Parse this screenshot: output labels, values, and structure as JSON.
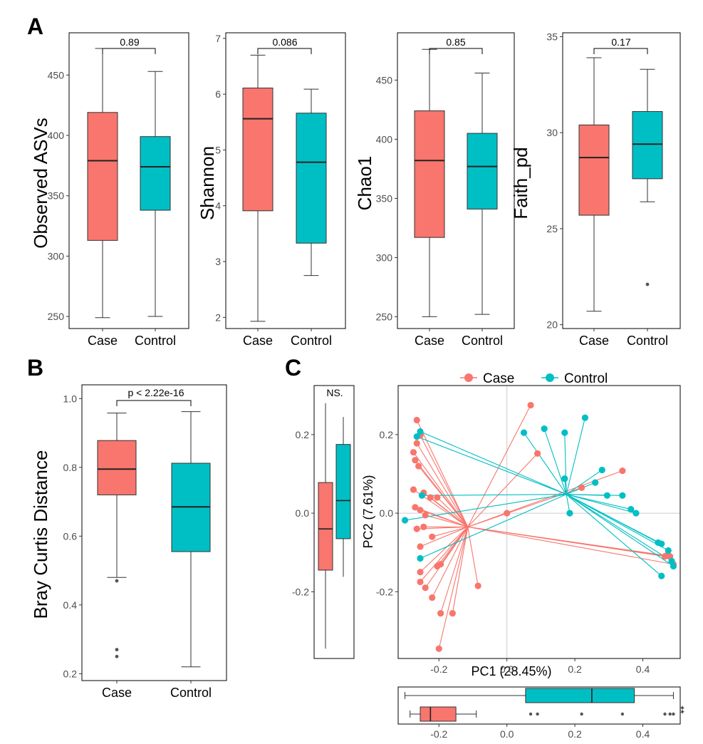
{
  "panel_labels": {
    "a": "A",
    "b": "B",
    "c": "C"
  },
  "colors": {
    "case": "#F8766D",
    "control": "#00BFC4",
    "outlier": "#555555",
    "grid": "#cccccc"
  },
  "chart_data": [
    {
      "type": "boxplot",
      "panel": "A",
      "ylabel": "Observed ASVs",
      "xlabel": "",
      "ylim": [
        240,
        485
      ],
      "yticks": [
        250,
        300,
        350,
        400,
        450
      ],
      "categories": [
        "Case",
        "Control"
      ],
      "boxes": [
        {
          "name": "Case",
          "whisker_low": 249,
          "q1": 313,
          "median": 379,
          "q3": 419,
          "whisker_high": 472,
          "outliers": []
        },
        {
          "name": "Control",
          "whisker_low": 250,
          "q1": 338,
          "median": 374,
          "q3": 399,
          "whisker_high": 453,
          "outliers": []
        }
      ],
      "comparison": {
        "label": "0.89"
      }
    },
    {
      "type": "boxplot",
      "panel": "A",
      "ylabel": "Shannon",
      "xlabel": "",
      "ylim": [
        1.8,
        7.1
      ],
      "yticks": [
        2,
        3,
        4,
        5,
        6,
        7
      ],
      "categories": [
        "Case",
        "Control"
      ],
      "boxes": [
        {
          "name": "Case",
          "whisker_low": 1.93,
          "q1": 3.91,
          "median": 5.56,
          "q3": 6.11,
          "whisker_high": 6.7,
          "outliers": []
        },
        {
          "name": "Control",
          "whisker_low": 2.75,
          "q1": 3.33,
          "median": 4.78,
          "q3": 5.66,
          "whisker_high": 6.09,
          "outliers": []
        }
      ],
      "comparison": {
        "label": "0.086"
      }
    },
    {
      "type": "boxplot",
      "panel": "A",
      "ylabel": "Chao1",
      "xlabel": "",
      "ylim": [
        240,
        490
      ],
      "yticks": [
        250,
        300,
        350,
        400,
        450
      ],
      "categories": [
        "Case",
        "Control"
      ],
      "boxes": [
        {
          "name": "Case",
          "whisker_low": 250,
          "q1": 317,
          "median": 382,
          "q3": 424,
          "whisker_high": 476,
          "outliers": []
        },
        {
          "name": "Control",
          "whisker_low": 252,
          "q1": 341,
          "median": 377,
          "q3": 405,
          "whisker_high": 456,
          "outliers": []
        }
      ],
      "comparison": {
        "label": "0.85"
      }
    },
    {
      "type": "boxplot",
      "panel": "A",
      "ylabel": "Faith_pd",
      "xlabel": "",
      "ylim": [
        19.8,
        35.2
      ],
      "yticks": [
        20,
        25,
        30,
        35
      ],
      "categories": [
        "Case",
        "Control"
      ],
      "boxes": [
        {
          "name": "Case",
          "whisker_low": 20.7,
          "q1": 25.7,
          "median": 28.7,
          "q3": 30.4,
          "whisker_high": 33.9,
          "outliers": []
        },
        {
          "name": "Control",
          "whisker_low": 26.4,
          "q1": 27.6,
          "median": 29.4,
          "q3": 31.1,
          "whisker_high": 33.3,
          "outliers": [
            22.1
          ]
        }
      ],
      "comparison": {
        "label": "0.17"
      }
    },
    {
      "type": "boxplot",
      "panel": "B",
      "ylabel": "Bray Curtis Distance",
      "xlabel": "",
      "ylim": [
        0.18,
        1.04
      ],
      "yticks": [
        0.2,
        0.4,
        0.6,
        0.8,
        1.0
      ],
      "ytick_labels": [
        "0.2",
        "0.4",
        "0.6",
        "0.8",
        "1.0"
      ],
      "categories": [
        "Case",
        "Control"
      ],
      "boxes": [
        {
          "name": "Case",
          "whisker_low": 0.48,
          "q1": 0.72,
          "median": 0.795,
          "q3": 0.878,
          "whisker_high": 0.958,
          "outliers": [
            0.47,
            0.27,
            0.25
          ]
        },
        {
          "name": "Control",
          "whisker_low": 0.22,
          "q1": 0.555,
          "median": 0.685,
          "q3": 0.812,
          "whisker_high": 0.962,
          "outliers": []
        }
      ],
      "comparison": {
        "label": "p < 2.22e-16"
      }
    },
    {
      "type": "scatter",
      "panel": "C",
      "subtype": "pcoa_spider",
      "xlabel": "PC1 (28.45%)",
      "ylabel": "PC2 (7.61%)",
      "xlim": [
        -0.32,
        0.51
      ],
      "ylim": [
        -0.37,
        0.325
      ],
      "xticks": [
        -0.2,
        0.0,
        0.2,
        0.4
      ],
      "xtick_labels": [
        "-0.2",
        "0.0",
        "0.2",
        "0.4"
      ],
      "yticks": [
        -0.2,
        0.0,
        0.2
      ],
      "ytick_labels": [
        "-0.2",
        "0.0",
        "0.2"
      ],
      "zero_lines": true,
      "legend": {
        "position": "top",
        "entries": [
          "Case",
          "Control"
        ]
      },
      "series": [
        {
          "name": "Case",
          "centroid": [
            -0.115,
            -0.035
          ],
          "points": [
            [
              0.07,
              0.275
            ],
            [
              -0.265,
              0.237
            ],
            [
              -0.255,
              0.198
            ],
            [
              -0.265,
              0.178
            ],
            [
              -0.275,
              0.155
            ],
            [
              -0.27,
              0.135
            ],
            [
              -0.26,
              0.12
            ],
            [
              -0.275,
              0.06
            ],
            [
              -0.245,
              0.052
            ],
            [
              -0.225,
              0.04
            ],
            [
              -0.205,
              0.04
            ],
            [
              -0.27,
              0.015
            ],
            [
              -0.255,
              0.008
            ],
            [
              -0.24,
              -0.005
            ],
            [
              -0.265,
              -0.04
            ],
            [
              -0.245,
              -0.035
            ],
            [
              -0.22,
              -0.06
            ],
            [
              -0.255,
              -0.085
            ],
            [
              -0.205,
              -0.135
            ],
            [
              -0.195,
              -0.13
            ],
            [
              -0.255,
              -0.15
            ],
            [
              -0.255,
              -0.175
            ],
            [
              -0.24,
              -0.19
            ],
            [
              -0.22,
              -0.215
            ],
            [
              -0.16,
              -0.255
            ],
            [
              -0.195,
              -0.255
            ],
            [
              -0.2,
              -0.345
            ],
            [
              -0.085,
              -0.185
            ],
            [
              0.09,
              0.152
            ],
            [
              0.34,
              0.108
            ],
            [
              0.22,
              0.065
            ],
            [
              0.47,
              -0.108
            ],
            [
              0.48,
              -0.11
            ],
            [
              0.49,
              -0.13
            ],
            [
              0.465,
              -0.11
            ],
            [
              0.0,
              0.0
            ]
          ]
        },
        {
          "name": "Control",
          "centroid": [
            0.175,
            0.048
          ],
          "points": [
            [
              -0.265,
              0.195
            ],
            [
              -0.255,
              0.208
            ],
            [
              -0.3,
              -0.018
            ],
            [
              -0.25,
              0.045
            ],
            [
              -0.255,
              -0.115
            ],
            [
              0.05,
              0.205
            ],
            [
              0.11,
              0.215
            ],
            [
              0.17,
              0.205
            ],
            [
              0.23,
              0.243
            ],
            [
              0.17,
              0.088
            ],
            [
              0.185,
              0.0
            ],
            [
              0.26,
              0.078
            ],
            [
              0.28,
              0.11
            ],
            [
              0.295,
              0.045
            ],
            [
              0.34,
              0.045
            ],
            [
              0.365,
              0.01
            ],
            [
              0.38,
              0.0
            ],
            [
              0.445,
              -0.075
            ],
            [
              0.455,
              -0.078
            ],
            [
              0.475,
              -0.095
            ],
            [
              0.49,
              -0.135
            ],
            [
              0.455,
              -0.16
            ],
            [
              0.485,
              -0.122
            ]
          ]
        }
      ]
    },
    {
      "type": "boxplot",
      "panel": "C",
      "orientation": "vertical",
      "role": "PC2 marginal",
      "ylim": [
        -0.37,
        0.325
      ],
      "yticks": [
        -0.2,
        0.0,
        0.2
      ],
      "ytick_labels": [
        "-0.2",
        "0.0",
        "0.2"
      ],
      "boxes": [
        {
          "name": "Case",
          "whisker_low": -0.345,
          "q1": -0.145,
          "median": -0.04,
          "q3": 0.078,
          "whisker_high": 0.28,
          "outliers": []
        },
        {
          "name": "Control",
          "whisker_low": -0.162,
          "q1": -0.065,
          "median": 0.032,
          "q3": 0.175,
          "whisker_high": 0.245,
          "outliers": []
        }
      ],
      "comparison": {
        "label": "NS."
      }
    },
    {
      "type": "boxplot",
      "panel": "C",
      "orientation": "horizontal",
      "role": "PC1 marginal",
      "xlim": [
        -0.32,
        0.51
      ],
      "xticks": [
        -0.2,
        0.0,
        0.2,
        0.4
      ],
      "xtick_labels": [
        "-0.2",
        "0.0",
        "0.2",
        "0.4"
      ],
      "boxes": [
        {
          "name": "Control",
          "whisker_low": -0.3,
          "q1": 0.055,
          "median": 0.25,
          "q3": 0.375,
          "whisker_high": 0.49,
          "outliers": []
        },
        {
          "name": "Case",
          "whisker_low": -0.285,
          "q1": -0.255,
          "median": -0.225,
          "q3": -0.15,
          "whisker_high": -0.09,
          "outliers": [
            0.07,
            0.09,
            0.22,
            0.34,
            0.465,
            0.48,
            0.49
          ]
        }
      ],
      "comparison": {
        "label": "**"
      }
    }
  ]
}
